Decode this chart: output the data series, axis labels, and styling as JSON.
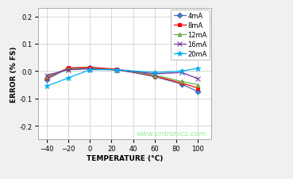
{
  "title": "",
  "xlabel": "TEMPERATURE (°C)",
  "ylabel": "ERROR (% FS)",
  "watermark": "www.cntronics.com",
  "xlim": [
    -48,
    112
  ],
  "ylim": [
    -0.25,
    0.23
  ],
  "xticks": [
    -40,
    -20,
    0,
    20,
    40,
    60,
    80,
    100
  ],
  "yticks": [
    -0.2,
    -0.1,
    0.0,
    0.1,
    0.2
  ],
  "series": [
    {
      "label": "4mA",
      "color": "#4472C4",
      "marker": "D",
      "markersize": 3.5,
      "data_x": [
        -40,
        -20,
        0,
        25,
        60,
        85,
        100
      ],
      "data_y": [
        -0.03,
        0.01,
        0.012,
        0.005,
        -0.02,
        -0.048,
        -0.075
      ]
    },
    {
      "label": "8mA",
      "color": "#FF0000",
      "marker": "s",
      "markersize": 3.5,
      "data_x": [
        -40,
        -20,
        0,
        25,
        60,
        85,
        100
      ],
      "data_y": [
        -0.025,
        0.012,
        0.014,
        0.007,
        -0.018,
        -0.044,
        -0.062
      ]
    },
    {
      "label": "12mA",
      "color": "#70AD47",
      "marker": "^",
      "markersize": 3.5,
      "data_x": [
        -40,
        -20,
        0,
        25,
        60,
        85,
        100
      ],
      "data_y": [
        -0.02,
        0.008,
        0.01,
        0.005,
        -0.015,
        -0.038,
        -0.05
      ]
    },
    {
      "label": "16mA",
      "color": "#7030A0",
      "marker": "x",
      "markersize": 4.5,
      "data_x": [
        -40,
        -20,
        0,
        25,
        60,
        85,
        100
      ],
      "data_y": [
        -0.015,
        0.005,
        0.008,
        0.004,
        -0.01,
        -0.005,
        -0.028
      ]
    },
    {
      "label": "20mA",
      "color": "#00B0F0",
      "marker": "*",
      "markersize": 5,
      "data_x": [
        -40,
        -20,
        0,
        25,
        60,
        85,
        100
      ],
      "data_y": [
        -0.055,
        -0.025,
        0.005,
        0.005,
        -0.005,
        0.0,
        0.01
      ]
    }
  ],
  "background_color": "#F0F0F0",
  "plot_bg_color": "#FFFFFF",
  "grid_color": "#C8C8C8",
  "watermark_color": "#90EE90",
  "legend_fontsize": 6,
  "axis_label_fontsize": 6.5,
  "tick_fontsize": 6
}
